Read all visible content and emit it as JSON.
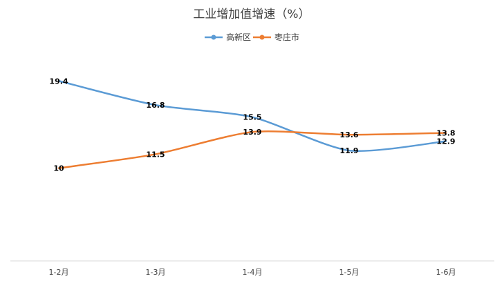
{
  "chart_data": {
    "type": "line",
    "title": "工业增加值增速（%）",
    "xlabel": "",
    "ylabel": "",
    "categories": [
      "1-2月",
      "1-3月",
      "1-4月",
      "1-5月",
      "1-6月"
    ],
    "series": [
      {
        "name": "高新区",
        "color": "#5B9BD5",
        "values": [
          19.4,
          16.8,
          15.5,
          11.9,
          12.9
        ]
      },
      {
        "name": "枣庄市",
        "color": "#ED7D31",
        "values": [
          10,
          11.5,
          13.9,
          13.6,
          13.8
        ]
      }
    ],
    "ylim": [
      0,
      25
    ],
    "grid": false,
    "legend_position": "top-center",
    "data_labels": true
  }
}
